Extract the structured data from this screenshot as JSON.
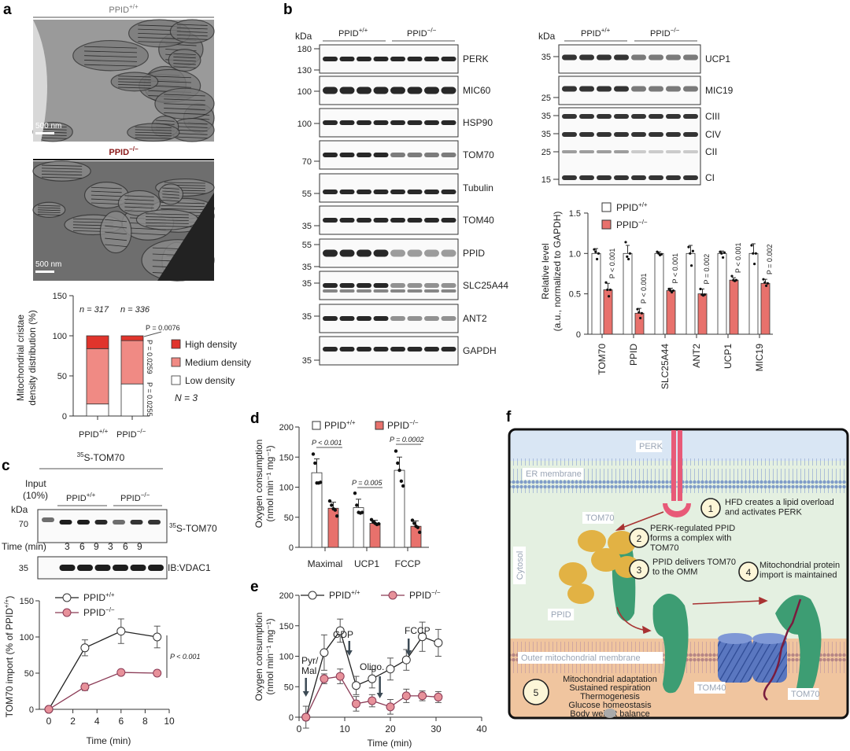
{
  "genotypes": {
    "wt": {
      "base": "PPID",
      "sup": "+/+"
    },
    "ko": {
      "base": "PPID",
      "sup": "−/−"
    }
  },
  "colors": {
    "wt_fill": "#ffffff",
    "ko_fill": "#e8716c",
    "high_density": "#e0342c",
    "medium_density": "#f08a84",
    "ko_line": "#e7919a",
    "panel_f_border": "#111111"
  },
  "panel_a": {
    "label": "a",
    "scale_bar": "500 nm",
    "chart_data": {
      "type": "bar",
      "stacked": true,
      "categories": [
        "PPID+/+",
        "PPID−/−"
      ],
      "series": [
        {
          "name": "Low density",
          "values": [
            15,
            40
          ]
        },
        {
          "name": "Medium density",
          "values": [
            69,
            54
          ]
        },
        {
          "name": "High density",
          "values": [
            16,
            6
          ]
        }
      ],
      "ylabel_line1": "Mitochondrial cristae",
      "ylabel_line2": "density distribution (%)",
      "ylim": [
        0,
        150
      ],
      "yticks": [
        "0",
        "50",
        "100",
        "150"
      ],
      "n_labels": [
        "n = 317",
        "n = 336"
      ],
      "p_values": [
        "P = 0.0076",
        "P = 0.0259",
        "P = 0.0255"
      ],
      "legend": [
        "High density",
        "Medium density",
        "Low density"
      ],
      "legend_placement": "right",
      "N_label": "N = 3"
    }
  },
  "panel_b": {
    "label": "b",
    "kda": "kDa",
    "left_blots": [
      {
        "name": "PERK",
        "markers": [
          "180",
          "130"
        ]
      },
      {
        "name": "MIC60",
        "markers": [
          "100"
        ]
      },
      {
        "name": "HSP90",
        "markers": [
          "100"
        ]
      },
      {
        "name": "TOM70",
        "markers": [
          "70"
        ]
      },
      {
        "name": "Tubulin",
        "markers": [
          "55"
        ]
      },
      {
        "name": "TOM40",
        "markers": [
          "35"
        ]
      },
      {
        "name": "PPID",
        "markers": [
          "55",
          "35"
        ]
      },
      {
        "name": "SLC25A44",
        "markers": [
          "35"
        ]
      },
      {
        "name": "ANT2",
        "markers": [
          "35"
        ]
      },
      {
        "name": "GAPDH",
        "markers": [
          "35"
        ]
      }
    ],
    "right_blots": [
      {
        "name": "UCP1",
        "markers": [
          "35"
        ]
      },
      {
        "name": "MIC19",
        "markers": [
          "25"
        ]
      }
    ],
    "oxphos_labels": [
      "CIII",
      "CIV",
      "CII",
      "CI"
    ],
    "oxphos_markers": [
      "35",
      "35",
      "25",
      "15"
    ],
    "chart_data": {
      "type": "bar",
      "categories": [
        "TOM70",
        "PPID",
        "SLC25A44",
        "ANT2",
        "UCP1",
        "MIC19"
      ],
      "series": [
        {
          "name": "PPID+/+",
          "values": [
            1.0,
            1.0,
            1.0,
            1.0,
            1.0,
            1.0
          ],
          "points": [
            [
              1.05,
              1.02,
              0.93,
              1.0
            ],
            [
              1.14,
              0.96,
              0.93,
              1.0
            ],
            [
              1.02,
              1.0,
              0.98,
              0.99
            ],
            [
              1.08,
              1.0,
              0.85,
              1.03
            ],
            [
              1.02,
              1.0,
              0.95,
              1.01
            ],
            [
              1.1,
              1.0,
              0.87,
              1.0
            ]
          ],
          "errors": [
            0.06,
            0.1,
            0.02,
            0.1,
            0.03,
            0.12
          ]
        },
        {
          "name": "PPID−/−",
          "values": [
            0.55,
            0.26,
            0.54,
            0.5,
            0.67,
            0.63
          ],
          "points": [
            [
              0.64,
              0.55,
              0.47,
              0.55
            ],
            [
              0.31,
              0.27,
              0.2,
              0.26
            ],
            [
              0.56,
              0.54,
              0.52,
              0.54
            ],
            [
              0.56,
              0.49,
              0.48,
              0.49
            ],
            [
              0.72,
              0.67,
              0.66,
              0.67
            ],
            [
              0.68,
              0.64,
              0.6,
              0.63
            ]
          ],
          "errors": [
            0.08,
            0.06,
            0.03,
            0.06,
            0.03,
            0.05
          ]
        }
      ],
      "ylabel_line1": "Relative level",
      "ylabel_line2": "(a.u., normalized to GAPDH)",
      "ylim": [
        0,
        1.5
      ],
      "yticks": [
        "0",
        "0.5",
        "1.0",
        "1.5"
      ],
      "p_values": [
        "P < 0.001",
        "P < 0.001",
        "P < 0.001",
        "P = 0.002",
        "P < 0.001",
        "P = 0.002"
      ],
      "legend_placement": "top-left"
    }
  },
  "panel_c": {
    "label": "c",
    "title": "35S-TOM70",
    "title_sup": "35",
    "title_base": "S-TOM70",
    "input_line1": "Input",
    "input_line2": "(10%)",
    "kda": "kDa",
    "marker_top": "70",
    "marker_bottom": "35",
    "blot_top_label_sup": "35",
    "blot_top_label_base": "S-TOM70",
    "blot_bottom_label": "IB:VDAC1",
    "time_label": "Time (min)",
    "time_values": [
      "3",
      "6",
      "9",
      "3",
      "6",
      "9"
    ],
    "chart_data": {
      "type": "line",
      "x": [
        0,
        3,
        6,
        9
      ],
      "series": [
        {
          "name": "PPID+/+",
          "values": [
            0,
            85,
            108,
            100
          ],
          "errors": [
            0,
            11,
            17,
            15
          ]
        },
        {
          "name": "PPID−/−",
          "values": [
            0,
            31,
            51,
            50
          ],
          "errors": [
            0,
            5,
            2,
            2
          ]
        }
      ],
      "ylabel": "TOM70 import (% of PPID",
      "ylabel_sup": "+/+",
      "ylabel_end": ")",
      "xlabel": "Time (min)",
      "xlim": [
        0,
        10
      ],
      "ylim": [
        0,
        150
      ],
      "xticks": [
        "0",
        "2",
        "4",
        "6",
        "8",
        "10"
      ],
      "yticks": [
        "0",
        "50",
        "100",
        "150"
      ],
      "p_value": "P < 0.001",
      "legend_placement": "top-left"
    }
  },
  "panel_d": {
    "label": "d",
    "chart_data": {
      "type": "bar",
      "categories": [
        "Maximal",
        "UCP1",
        "FCCP"
      ],
      "series": [
        {
          "name": "PPID+/+",
          "values": [
            124,
            66,
            128
          ],
          "errors": [
            23,
            14,
            22
          ],
          "points": [
            [
              155,
              140,
              107,
              107,
              108
            ],
            [
              90,
              70,
              58,
              57,
              58
            ],
            [
              160,
              140,
              128,
              110,
              102
            ]
          ]
        },
        {
          "name": "PPID−/−",
          "values": [
            65,
            40,
            35
          ],
          "errors": [
            10,
            5,
            9
          ],
          "points": [
            [
              77,
              70,
              64,
              62,
              52
            ],
            [
              46,
              42,
              40,
              38,
              39
            ],
            [
              45,
              40,
              35,
              33,
              25
            ]
          ]
        }
      ],
      "ylabel_line1": "Oxygen consumption",
      "ylabel_line2": "(nmol min⁻¹ mg⁻¹)",
      "ylim": [
        0,
        200
      ],
      "yticks": [
        "0",
        "50",
        "100",
        "150",
        "200"
      ],
      "p_values": [
        "P < 0.001",
        "P = 0.005",
        "P = 0.0002"
      ],
      "legend_placement": "top"
    }
  },
  "panel_e": {
    "label": "e",
    "chart_data": {
      "type": "line",
      "x": [
        1.5,
        5.5,
        9,
        12.5,
        16,
        20,
        23.5,
        27,
        30.5
      ],
      "series": [
        {
          "name": "PPID+/+",
          "values": [
            0,
            106,
            142,
            52,
            63,
            79,
            94,
            132,
            122
          ],
          "errors": [
            18,
            29,
            19,
            15,
            15,
            18,
            17,
            24,
            22
          ]
        },
        {
          "name": "PPID−/−",
          "values": [
            0,
            63,
            67,
            22,
            27,
            17,
            35,
            35,
            33
          ],
          "errors": [
            5,
            8,
            12,
            12,
            10,
            12,
            11,
            8,
            9
          ]
        }
      ],
      "ylabel_line1": "Oxygen consumption",
      "ylabel_line2": "(nmol min⁻¹ mg⁻¹)",
      "xlabel": "Time (min)",
      "xlim": [
        0,
        40
      ],
      "ylim": [
        0,
        200
      ],
      "xticks": [
        "0",
        "10",
        "20",
        "30",
        "40"
      ],
      "yticks": [
        "0",
        "50",
        "100",
        "150",
        "200"
      ],
      "annotations": [
        {
          "text": [
            "Pyr/",
            "Mal"
          ],
          "x": 1.5
        },
        {
          "text": [
            "GDP"
          ],
          "x": 11
        },
        {
          "text": [
            "Oligo."
          ],
          "x": 17.7
        },
        {
          "text": [
            "FCCP"
          ],
          "x": 24
        }
      ],
      "legend_placement": "top"
    }
  },
  "panel_f": {
    "label": "f",
    "labels": {
      "perk": "PERK",
      "er": "ER membrane",
      "tom70_a": "TOM70",
      "cytosol": "Cytosol",
      "ppid": "PPID",
      "omm": "Outer mitochondrial membrane",
      "tom40": "TOM40",
      "tom70_b": "TOM70"
    },
    "steps": [
      {
        "num": "1",
        "lines": [
          "HFD creates a lipid overload",
          "and activates PERK"
        ]
      },
      {
        "num": "2",
        "lines": [
          "PERK-regulated PPID",
          "forms a complex with",
          "TOM70"
        ]
      },
      {
        "num": "3",
        "lines": [
          "PPID delivers TOM70",
          "to the OMM"
        ]
      },
      {
        "num": "4",
        "lines": [
          "Mitochondrial protein",
          "import is maintained"
        ]
      },
      {
        "num": "5",
        "lines": [
          "Mitochondrial adaptation",
          "Sustained respiration",
          "Thermogenesis",
          "Glucose homeostasis",
          "Body weight balance"
        ]
      }
    ],
    "watermark": "公众号 · 代谢学人"
  }
}
